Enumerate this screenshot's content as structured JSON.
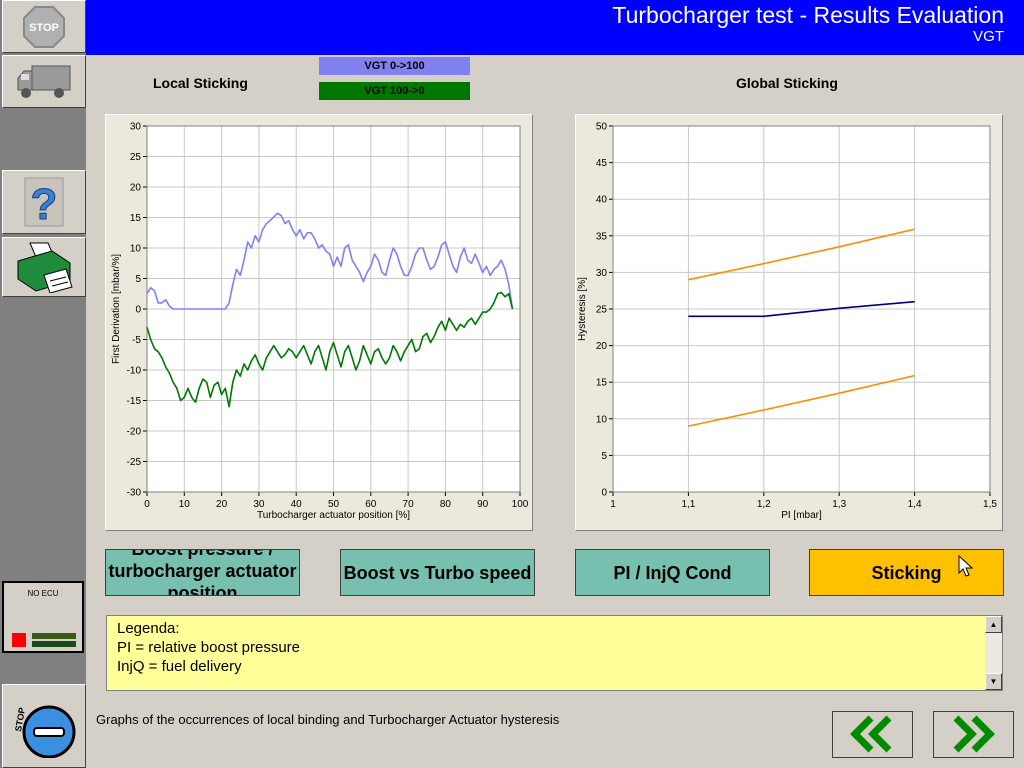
{
  "header": {
    "title": "Turbocharger test - Results Evaluation",
    "subtitle": "VGT"
  },
  "sidebar": {
    "stop_top_label": "STOP",
    "ecu_label": "NO ECU",
    "stop_bottom_label": "STOP"
  },
  "local_panel": {
    "title": "Local Sticking",
    "legend": [
      {
        "label": "VGT 0->100",
        "color": "#8080f0"
      },
      {
        "label": "VGT 100->0",
        "color": "#007800"
      }
    ]
  },
  "global_panel": {
    "title": "Global Sticking"
  },
  "chart_data": [
    {
      "type": "line",
      "title": "Local Sticking",
      "xlabel": "Turbocharger actuator position [%]",
      "ylabel": "First Derivation [mbar/%]",
      "xlim": [
        0,
        100
      ],
      "ylim": [
        -30,
        30
      ],
      "x_ticks": [
        "0",
        "10",
        "20",
        "30",
        "40",
        "50",
        "60",
        "70",
        "80",
        "90",
        "100"
      ],
      "y_ticks": [
        "30",
        "25",
        "20",
        "15",
        "10",
        "5",
        "0",
        "-5",
        "-10",
        "-15",
        "-20",
        "-25",
        "-30"
      ],
      "grid": true,
      "series": [
        {
          "name": "VGT 0->100",
          "color": "#8080f0",
          "points": [
            [
              0,
              2.5
            ],
            [
              1,
              3.5
            ],
            [
              2,
              3
            ],
            [
              3,
              1
            ],
            [
              4,
              1
            ],
            [
              5,
              1.5
            ],
            [
              6,
              0.5
            ],
            [
              7,
              0
            ],
            [
              10,
              0
            ],
            [
              15,
              0
            ],
            [
              21,
              0
            ],
            [
              22,
              1
            ],
            [
              23,
              4
            ],
            [
              24,
              6.5
            ],
            [
              25,
              5.5
            ],
            [
              26,
              8
            ],
            [
              27,
              11
            ],
            [
              28,
              10
            ],
            [
              29,
              12
            ],
            [
              30,
              11
            ],
            [
              31,
              13
            ],
            [
              32,
              14
            ],
            [
              33,
              14.5
            ],
            [
              35,
              15.7
            ],
            [
              36,
              15.3
            ],
            [
              37,
              14
            ],
            [
              38,
              14.5
            ],
            [
              39,
              13
            ],
            [
              40,
              12
            ],
            [
              41,
              13
            ],
            [
              42,
              11.5
            ],
            [
              43,
              12.5
            ],
            [
              44,
              12.5
            ],
            [
              45,
              11.5
            ],
            [
              46,
              10
            ],
            [
              47,
              10.5
            ],
            [
              48,
              9.5
            ],
            [
              49,
              9
            ],
            [
              50,
              7
            ],
            [
              51,
              8.5
            ],
            [
              52,
              7
            ],
            [
              53,
              10
            ],
            [
              54,
              10.5
            ],
            [
              55,
              8
            ],
            [
              56,
              7
            ],
            [
              57,
              6
            ],
            [
              58,
              4.5
            ],
            [
              59,
              6
            ],
            [
              60,
              7
            ],
            [
              61,
              9
            ],
            [
              62,
              8
            ],
            [
              63,
              6
            ],
            [
              64,
              5.5
            ],
            [
              65,
              8
            ],
            [
              66,
              10
            ],
            [
              67,
              9
            ],
            [
              68,
              7
            ],
            [
              69,
              5.5
            ],
            [
              70,
              5.5
            ],
            [
              71,
              7
            ],
            [
              72,
              9
            ],
            [
              73,
              10
            ],
            [
              74,
              10
            ],
            [
              75,
              8
            ],
            [
              76,
              6.5
            ],
            [
              77,
              7
            ],
            [
              78,
              8.5
            ],
            [
              79,
              10.5
            ],
            [
              80,
              11
            ],
            [
              81,
              9
            ],
            [
              82,
              7
            ],
            [
              83,
              6
            ],
            [
              84,
              8.5
            ],
            [
              85,
              10
            ],
            [
              86,
              8
            ],
            [
              87,
              7.5
            ],
            [
              88,
              9
            ],
            [
              89,
              7.5
            ],
            [
              90,
              6
            ],
            [
              91,
              7
            ],
            [
              92,
              5.5
            ],
            [
              93,
              6.5
            ],
            [
              94,
              7
            ],
            [
              95,
              8
            ],
            [
              96,
              6.5
            ],
            [
              97,
              4
            ],
            [
              98,
              0
            ]
          ]
        },
        {
          "name": "VGT 100->0",
          "color": "#007800",
          "points": [
            [
              0,
              -3
            ],
            [
              1,
              -5
            ],
            [
              2,
              -6.5
            ],
            [
              3,
              -7
            ],
            [
              4,
              -8
            ],
            [
              5,
              -9.5
            ],
            [
              6,
              -10.5
            ],
            [
              7,
              -12
            ],
            [
              8,
              -13
            ],
            [
              9,
              -15
            ],
            [
              10,
              -14.5
            ],
            [
              11,
              -13
            ],
            [
              12,
              -14.5
            ],
            [
              13,
              -15.3
            ],
            [
              14,
              -13
            ],
            [
              15,
              -11.5
            ],
            [
              16,
              -12
            ],
            [
              17,
              -14.5
            ],
            [
              18,
              -12.5
            ],
            [
              19,
              -12
            ],
            [
              20,
              -14
            ],
            [
              21,
              -13
            ],
            [
              22,
              -16
            ],
            [
              23,
              -12
            ],
            [
              24,
              -10
            ],
            [
              25,
              -11
            ],
            [
              26,
              -9
            ],
            [
              27,
              -10
            ],
            [
              28,
              -8.5
            ],
            [
              29,
              -7.5
            ],
            [
              30,
              -9
            ],
            [
              31,
              -10
            ],
            [
              32,
              -8
            ],
            [
              33,
              -7
            ],
            [
              34,
              -6
            ],
            [
              35,
              -7
            ],
            [
              36,
              -8
            ],
            [
              37,
              -7.5
            ],
            [
              38,
              -6.5
            ],
            [
              39,
              -7
            ],
            [
              40,
              -8
            ],
            [
              41,
              -7
            ],
            [
              42,
              -6
            ],
            [
              43,
              -7.5
            ],
            [
              44,
              -9
            ],
            [
              45,
              -7
            ],
            [
              46,
              -6
            ],
            [
              47,
              -8
            ],
            [
              48,
              -10
            ],
            [
              49,
              -7
            ],
            [
              50,
              -5.5
            ],
            [
              51,
              -7.5
            ],
            [
              52,
              -9.5
            ],
            [
              53,
              -7
            ],
            [
              54,
              -6
            ],
            [
              55,
              -8
            ],
            [
              56,
              -10
            ],
            [
              57,
              -8.5
            ],
            [
              58,
              -6
            ],
            [
              59,
              -7.5
            ],
            [
              60,
              -9
            ],
            [
              61,
              -7
            ],
            [
              62,
              -6.5
            ],
            [
              63,
              -8
            ],
            [
              64,
              -9
            ],
            [
              65,
              -8
            ],
            [
              66,
              -6
            ],
            [
              67,
              -7
            ],
            [
              68,
              -8.5
            ],
            [
              69,
              -7
            ],
            [
              70,
              -6
            ],
            [
              71,
              -5
            ],
            [
              72,
              -7
            ],
            [
              73,
              -6.5
            ],
            [
              74,
              -4.5
            ],
            [
              75,
              -4
            ],
            [
              76,
              -5.5
            ],
            [
              77,
              -4.5
            ],
            [
              78,
              -3
            ],
            [
              79,
              -2
            ],
            [
              80,
              -3.5
            ],
            [
              81,
              -1.5
            ],
            [
              82,
              -2.5
            ],
            [
              83,
              -3.5
            ],
            [
              84,
              -2.5
            ],
            [
              85,
              -3
            ],
            [
              86,
              -2
            ],
            [
              87,
              -1.5
            ],
            [
              88,
              -2.5
            ],
            [
              89,
              -1.5
            ],
            [
              90,
              -0.5
            ],
            [
              91,
              -0.5
            ],
            [
              92,
              0
            ],
            [
              93,
              1
            ],
            [
              94,
              2.5
            ],
            [
              95,
              2.7
            ],
            [
              96,
              2
            ],
            [
              97,
              2.5
            ],
            [
              98,
              0
            ]
          ]
        }
      ]
    },
    {
      "type": "line",
      "title": "Global Sticking",
      "xlabel": "PI [mbar]",
      "ylabel": "Hysteresis [%]",
      "xlim": [
        1,
        1.5
      ],
      "ylim": [
        0,
        50
      ],
      "x_ticks": [
        "1",
        "1,1",
        "1,2",
        "1,3",
        "1,4",
        "1,5"
      ],
      "y_ticks": [
        "50",
        "45",
        "40",
        "35",
        "30",
        "25",
        "20",
        "15",
        "10",
        "5",
        "0"
      ],
      "grid": true,
      "series": [
        {
          "color": "#ff8c00",
          "points": [
            [
              1.1,
              29
            ],
            [
              1.2,
              31.2
            ],
            [
              1.3,
              33.5
            ],
            [
              1.4,
              35.9
            ]
          ]
        },
        {
          "color": "#000080",
          "points": [
            [
              1.1,
              24
            ],
            [
              1.2,
              24
            ],
            [
              1.3,
              25.1
            ],
            [
              1.4,
              26
            ]
          ]
        },
        {
          "color": "#ff8c00",
          "points": [
            [
              1.1,
              9
            ],
            [
              1.2,
              11.2
            ],
            [
              1.3,
              13.5
            ],
            [
              1.4,
              15.9
            ]
          ]
        }
      ]
    }
  ],
  "tabs": [
    {
      "label": "Boost pressure / turbocharger actuator position"
    },
    {
      "label": "Boost vs Turbo speed"
    },
    {
      "label": "PI / InjQ Cond"
    },
    {
      "label": "Sticking"
    }
  ],
  "legend_box": {
    "lines": [
      "Legenda:",
      "PI = relative boost pressure",
      "InjQ = fuel delivery"
    ]
  },
  "footer": {
    "text": "Graphs of the occurrences of local binding and Turbocharger Actuator hysteresis"
  },
  "colors": {
    "header": "#0000ff",
    "tab": "#77bfae",
    "tab_active": "#ffc000",
    "legend_bg": "#ffff99",
    "nav_arrow": "#008000"
  }
}
